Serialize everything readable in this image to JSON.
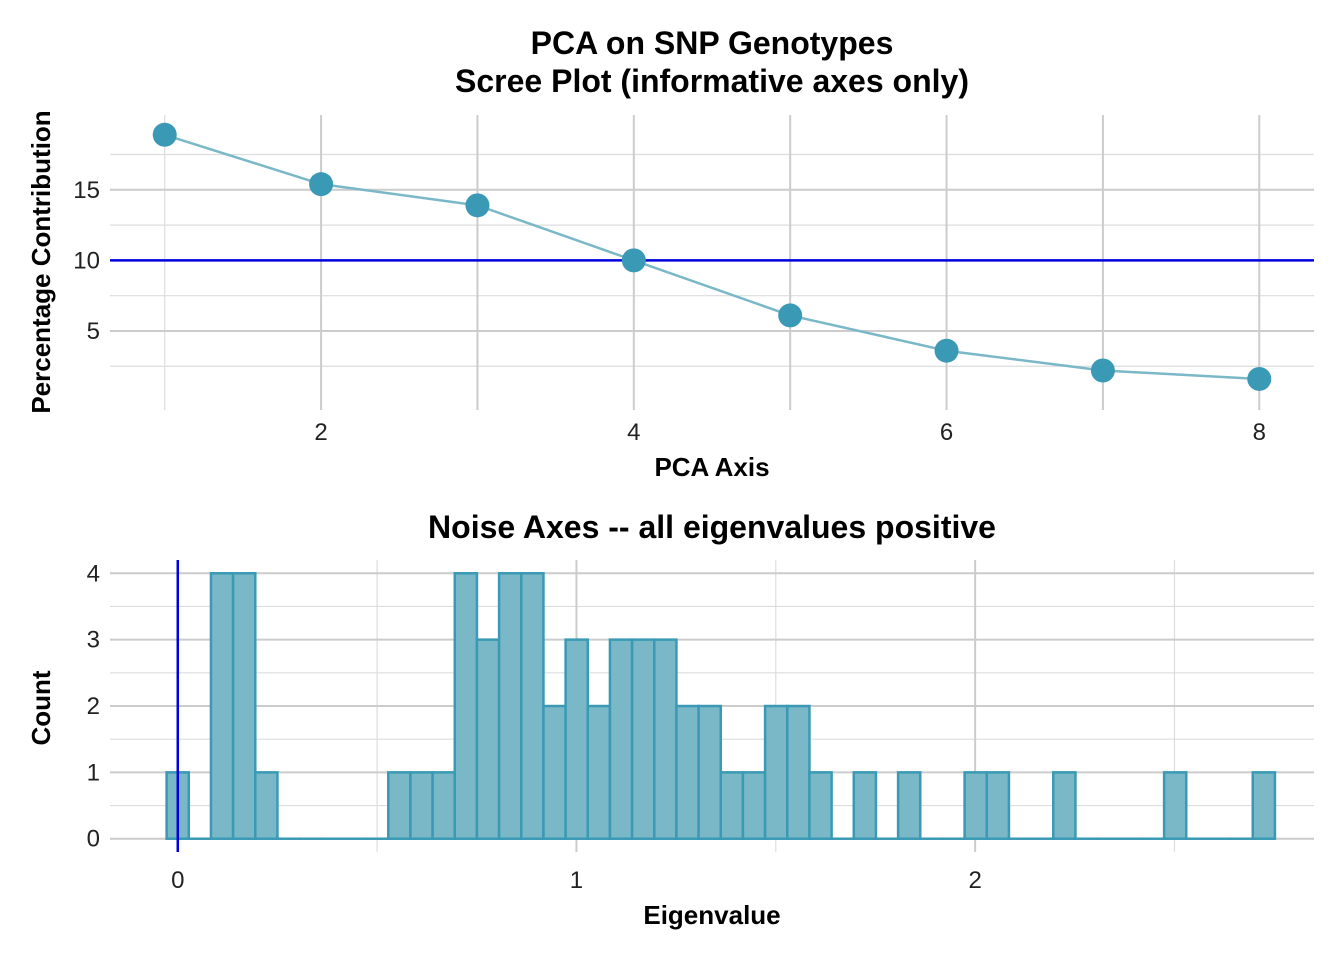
{
  "chart_data": [
    {
      "type": "line",
      "title_line1": "PCA on SNP Genotypes",
      "title_line2": "Scree Plot (informative axes only)",
      "xlabel": "PCA Axis",
      "ylabel": "Percentage Contribution",
      "x": [
        1,
        2,
        3,
        4,
        5,
        6,
        7,
        8
      ],
      "values": [
        18.9,
        15.4,
        13.9,
        10.0,
        6.1,
        3.6,
        2.2,
        1.6
      ],
      "xlim": [
        0.65,
        8.35
      ],
      "ylim": [
        -0.6,
        20.3
      ],
      "xticks": [
        2,
        4,
        6,
        8
      ],
      "yticks": [
        5,
        10,
        15
      ],
      "reference_line_y": 10,
      "grid": true,
      "colors": {
        "line": "#7ab8c8",
        "point": "#3a9ab5",
        "reference": "#0000dd"
      }
    },
    {
      "type": "bar",
      "subtype": "histogram",
      "title": "Noise Axes -- all eigenvalues positive",
      "xlabel": "Eigenvalue",
      "ylabel": "Count",
      "bin_width": 0.0556,
      "bin_start": -0.028,
      "counts": [
        1,
        0,
        4,
        4,
        1,
        0,
        0,
        0,
        0,
        0,
        1,
        1,
        1,
        4,
        3,
        4,
        4,
        2,
        3,
        2,
        3,
        3,
        3,
        2,
        2,
        1,
        1,
        2,
        2,
        1,
        0,
        1,
        0,
        1,
        0,
        0,
        1,
        1,
        0,
        0,
        1,
        0,
        0,
        0,
        0,
        1,
        0,
        0,
        0,
        1
      ],
      "xlim": [
        -0.17,
        2.85
      ],
      "ylim": [
        -0.2,
        4.2
      ],
      "xticks": [
        0,
        1,
        2
      ],
      "yticks": [
        0,
        1,
        2,
        3,
        4
      ],
      "reference_line_x": 0,
      "grid": true,
      "colors": {
        "bar_fill": "#7ab8c8",
        "bar_edge": "#3a9ab5",
        "reference": "#0000dd"
      }
    }
  ]
}
